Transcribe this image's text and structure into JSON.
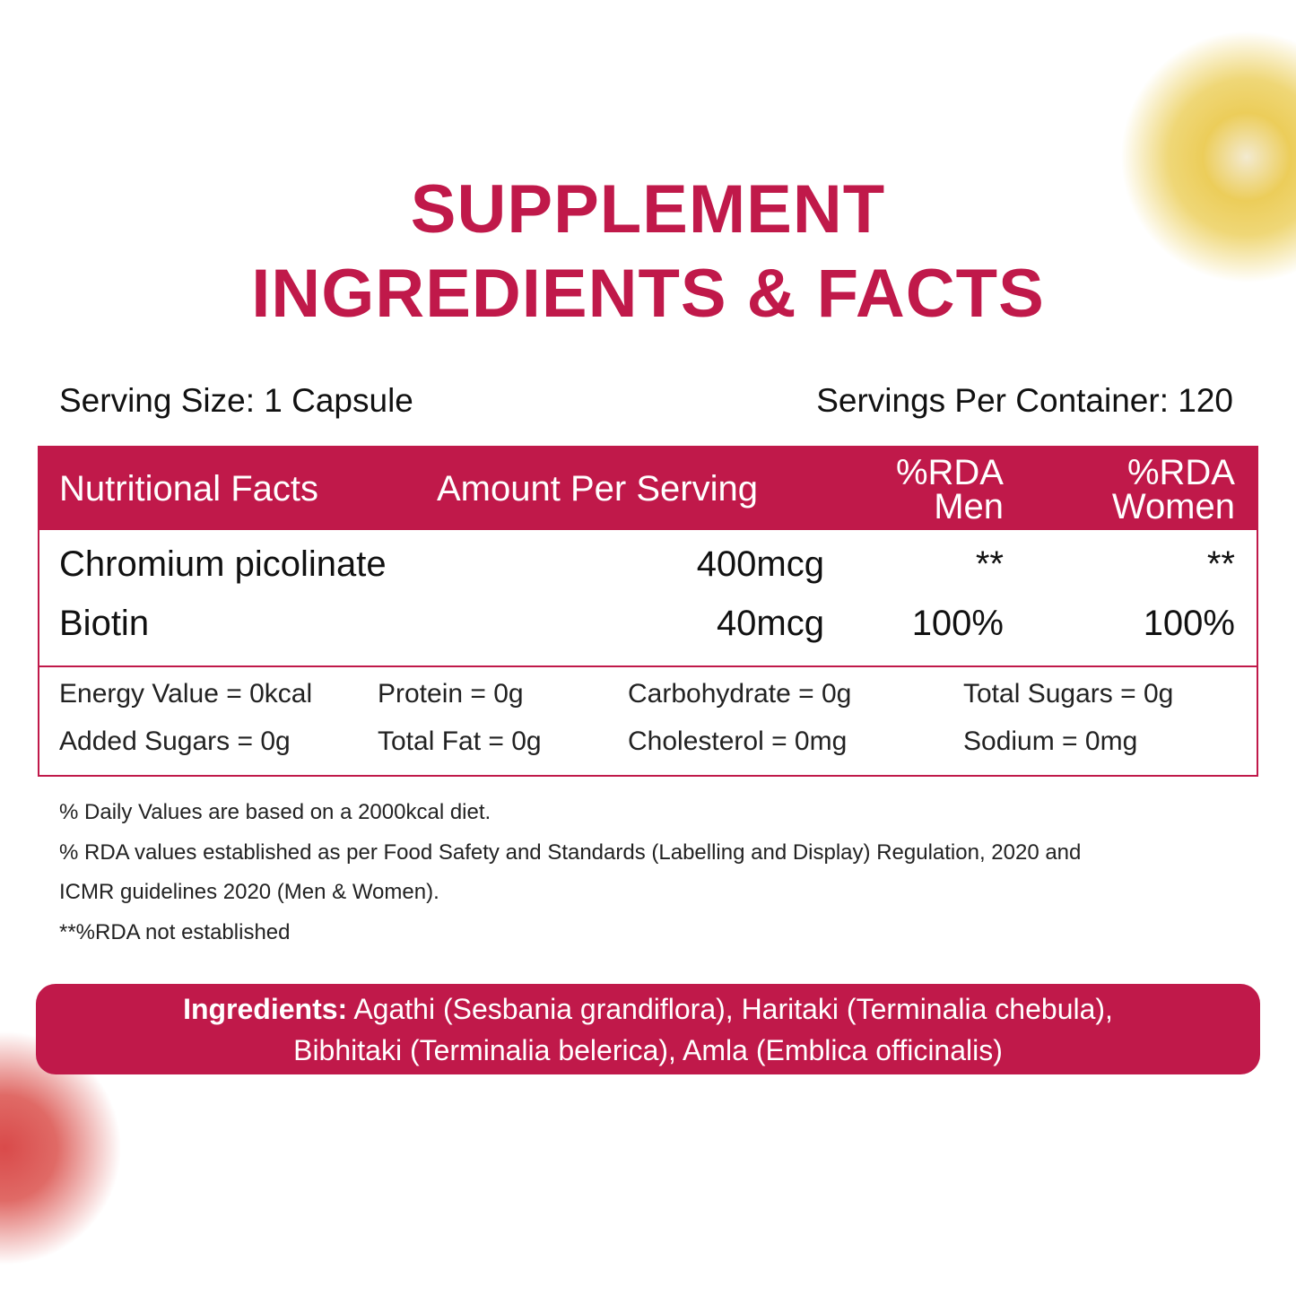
{
  "title": {
    "line1": "SUPPLEMENT",
    "line2": "INGREDIENTS & FACTS"
  },
  "serving": {
    "size": "Serving Size: 1 Capsule",
    "per_container": "Servings Per Container: 120"
  },
  "table": {
    "headers": {
      "facts": "Nutritional Facts",
      "amount": "Amount Per Serving",
      "rda_men_1": "%RDA",
      "rda_men_2": "Men",
      "rda_women_1": "%RDA",
      "rda_women_2": "Women"
    },
    "rows": [
      {
        "name": "Chromium picolinate",
        "amount": "400mcg",
        "men": "**",
        "women": "**"
      },
      {
        "name": "Biotin",
        "amount": "40mcg",
        "men": "100%",
        "women": "100%"
      }
    ],
    "nutrients": [
      "Energy Value = 0kcal",
      "Protein = 0g",
      "Carbohydrate = 0g",
      "Total Sugars = 0g",
      "Added Sugars = 0g",
      "Total Fat = 0g",
      "Cholesterol = 0mg",
      "Sodium = 0mg"
    ]
  },
  "notes": [
    "% Daily Values are based on a 2000kcal diet.",
    "% RDA values established as per Food Safety and Standards (Labelling and Display) Regulation, 2020 and",
    "ICMR guidelines 2020 (Men & Women).",
    "**%RDA not established"
  ],
  "ingredients": {
    "label": "Ingredients:",
    "line1": " Agathi (Sesbania grandiflora), Haritaki (Terminalia chebula),",
    "line2": "Bibhitaki (Terminalia belerica), Amla (Emblica officinalis)"
  },
  "colors": {
    "accent": "#c0194a"
  }
}
